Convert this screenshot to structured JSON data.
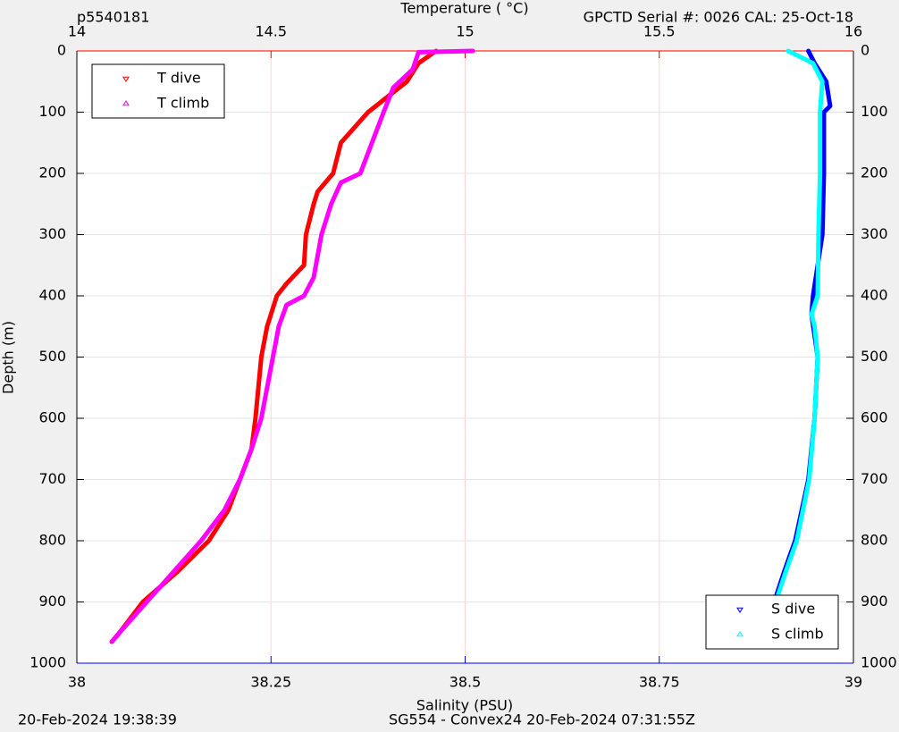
{
  "chart_data": {
    "type": "scatter",
    "top_left_label": "p5540181",
    "top_right_label": "GPCTD Serial #: 0026 CAL: 25-Oct-18",
    "footer_left": "20-Feb-2024 19:38:39",
    "footer_center": "SG554 - Convex24 20-Feb-2024 07:31:55Z",
    "x_label": "Salinity (PSU)",
    "x_color": "#0000ff",
    "x2_label": "Temperature (   °C)",
    "x2_color": "#ff0000",
    "y_label": "Depth (m)",
    "xlim": [
      38,
      39
    ],
    "xticks": [
      38,
      38.25,
      38.5,
      38.75,
      39
    ],
    "x2lim": [
      14,
      16
    ],
    "x2ticks": [
      14,
      14.5,
      15,
      15.5,
      16
    ],
    "ylim": [
      0,
      1000
    ],
    "yticks": [
      0,
      100,
      200,
      300,
      400,
      500,
      600,
      700,
      800,
      900,
      1000
    ],
    "y_reversed": true,
    "grid": true,
    "series": [
      {
        "name": "T dive",
        "color": "#ff0000",
        "marker": "v",
        "axis": "x2",
        "legend": "upper left",
        "x": [
          14.925,
          14.88,
          14.85,
          14.75,
          14.68,
          14.66,
          14.62,
          14.61,
          14.59,
          14.585,
          14.54,
          14.515,
          14.49,
          14.475,
          14.46,
          14.45,
          14.42,
          14.39,
          14.34,
          14.26,
          14.17,
          14.11,
          14.09
        ],
        "y": [
          0,
          20,
          50,
          100,
          150,
          200,
          230,
          250,
          300,
          350,
          380,
          400,
          450,
          500,
          600,
          650,
          700,
          750,
          800,
          850,
          900,
          950,
          965
        ]
      },
      {
        "name": "T climb",
        "color": "#ff00ff",
        "marker": "^",
        "axis": "x2",
        "legend": "upper left",
        "x": [
          15.02,
          14.88,
          14.865,
          14.815,
          14.79,
          14.76,
          14.73,
          14.68,
          14.655,
          14.63,
          14.61,
          14.585,
          14.54,
          14.52,
          14.505,
          14.49,
          14.475,
          14.45,
          14.42,
          14.38,
          14.32,
          14.25,
          14.18,
          14.11,
          14.09
        ],
        "y": [
          0,
          2,
          30,
          60,
          100,
          150,
          200,
          215,
          250,
          300,
          370,
          400,
          415,
          450,
          500,
          550,
          600,
          650,
          700,
          750,
          800,
          850,
          900,
          950,
          965
        ]
      },
      {
        "name": "S dive",
        "color": "#0000ff",
        "marker": "v",
        "legend": "lower right",
        "x": [
          38.942,
          38.95,
          38.965,
          38.97,
          38.962,
          38.962,
          38.96,
          38.948,
          38.946,
          38.954,
          38.95,
          38.942,
          38.925,
          38.911,
          38.898,
          38.888
        ],
        "y": [
          0,
          20,
          50,
          90,
          100,
          200,
          300,
          400,
          430,
          500,
          600,
          700,
          800,
          850,
          900,
          965
        ]
      },
      {
        "name": "S climb",
        "color": "#00ffff",
        "marker": "^",
        "legend": "lower right",
        "x": [
          38.916,
          38.948,
          38.96,
          38.957,
          38.957,
          38.955,
          38.954,
          38.946,
          38.95,
          38.954,
          38.95,
          38.943,
          38.927,
          38.913,
          38.9,
          38.888
        ],
        "y": [
          0,
          20,
          50,
          100,
          200,
          300,
          400,
          430,
          450,
          500,
          600,
          700,
          800,
          850,
          900,
          965
        ]
      }
    ]
  }
}
